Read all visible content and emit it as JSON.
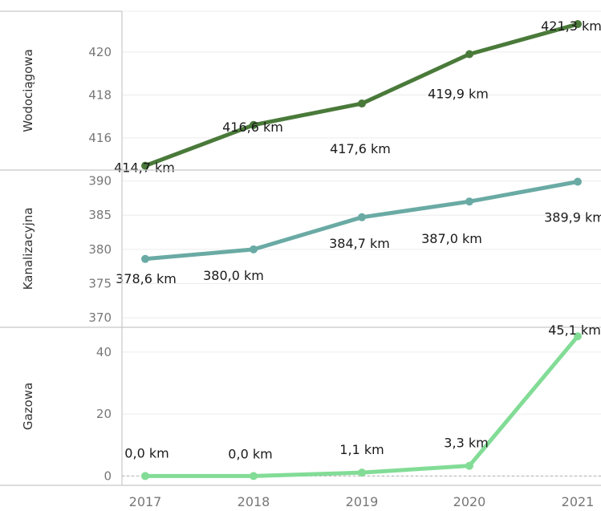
{
  "chart_data": {
    "type": "line",
    "categories": [
      "2017",
      "2018",
      "2019",
      "2020",
      "2021"
    ],
    "grid": true,
    "panels": [
      {
        "name": "Wodociągowa",
        "color": "#4a7a3a",
        "values": [
          414.7,
          416.6,
          417.6,
          419.9,
          421.3
        ],
        "data_labels": [
          "414,7 km",
          "416,6 km",
          "417,6 km",
          "419,9 km",
          "421,3 km"
        ],
        "ylim": [
          414.5,
          421.9
        ],
        "yticks": [
          416,
          418,
          420
        ],
        "ytick_labels": [
          "416",
          "418",
          "420"
        ]
      },
      {
        "name": "Kanalizacyjna",
        "color": "#6aaaa4",
        "values": [
          378.6,
          380.0,
          384.7,
          387.0,
          389.9
        ],
        "data_labels": [
          "378,6 km",
          "380,0 km",
          "384,7 km",
          "387,0 km",
          "389,9 km"
        ],
        "ylim": [
          368.6,
          391.6
        ],
        "yticks": [
          370,
          375,
          380,
          385,
          390
        ],
        "ytick_labels": [
          "370",
          "375",
          "380",
          "385",
          "390"
        ]
      },
      {
        "name": "Gazowa",
        "color": "#82dc96",
        "values": [
          0.0,
          0.0,
          1.1,
          3.3,
          45.1
        ],
        "data_labels": [
          "0,0 km",
          "0,0 km",
          "1,1 km",
          "3,3 km",
          "45,1 km"
        ],
        "ylim": [
          -3,
          48
        ],
        "yticks": [
          0,
          20,
          40
        ],
        "ytick_labels": [
          "0",
          "20",
          "40"
        ]
      }
    ]
  }
}
